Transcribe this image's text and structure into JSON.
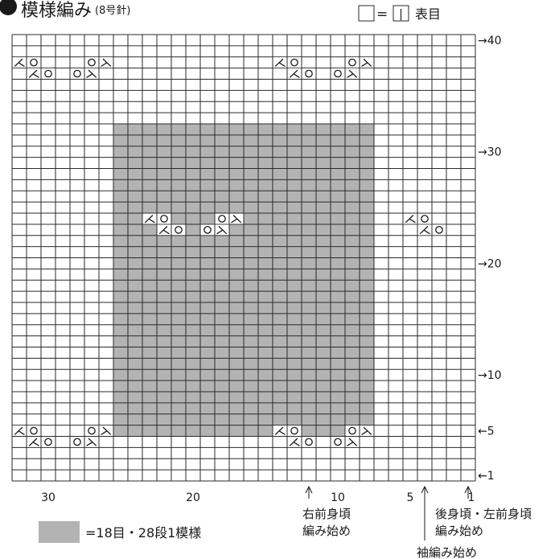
{
  "title": "模様編み",
  "needle": "(8号針)",
  "legend_top": {
    "equals": "=",
    "symbol": "|",
    "label": "表目"
  },
  "legend_bottom": {
    "label": "=18目・28段1模様"
  },
  "grid": {
    "cols": 32,
    "rows": 40,
    "shade_cols": [
      8,
      25
    ],
    "shade_rows": [
      5,
      32
    ]
  },
  "row_labels": [
    {
      "row": 40,
      "text": "→40"
    },
    {
      "row": 30,
      "text": "→30"
    },
    {
      "row": 20,
      "text": "→20"
    },
    {
      "row": 10,
      "text": "→10"
    },
    {
      "row": 5,
      "text": "←5"
    },
    {
      "row": 1,
      "text": "←1"
    }
  ],
  "col_labels": [
    {
      "col": 30,
      "text": "30"
    },
    {
      "col": 20,
      "text": "20"
    },
    {
      "col": 10,
      "text": "10"
    },
    {
      "col": 5,
      "text": "5"
    },
    {
      "col": 1,
      "text": "1"
    }
  ],
  "start_markers": [
    {
      "col": 12,
      "lines": [
        "右前身頃",
        "編み始め"
      ]
    },
    {
      "col": 1,
      "lines": [
        "後身頃・左前身頃",
        "編み始め"
      ]
    },
    {
      "col": 4,
      "lines": [
        "袖編み始め"
      ]
    }
  ],
  "symbols": [
    {
      "row": 38,
      "col": 32,
      "s": "k2tog"
    },
    {
      "row": 38,
      "col": 31,
      "s": "yo"
    },
    {
      "row": 38,
      "col": 27,
      "s": "yo"
    },
    {
      "row": 38,
      "col": 26,
      "s": "ssk"
    },
    {
      "row": 38,
      "col": 14,
      "s": "k2tog"
    },
    {
      "row": 38,
      "col": 13,
      "s": "yo"
    },
    {
      "row": 38,
      "col": 9,
      "s": "yo"
    },
    {
      "row": 38,
      "col": 8,
      "s": "ssk"
    },
    {
      "row": 37,
      "col": 31,
      "s": "k2tog"
    },
    {
      "row": 37,
      "col": 30,
      "s": "yo"
    },
    {
      "row": 37,
      "col": 28,
      "s": "yo"
    },
    {
      "row": 37,
      "col": 27,
      "s": "ssk"
    },
    {
      "row": 37,
      "col": 13,
      "s": "k2tog"
    },
    {
      "row": 37,
      "col": 12,
      "s": "yo"
    },
    {
      "row": 37,
      "col": 10,
      "s": "yo"
    },
    {
      "row": 37,
      "col": 9,
      "s": "ssk"
    },
    {
      "row": 24,
      "col": 23,
      "s": "k2tog"
    },
    {
      "row": 24,
      "col": 22,
      "s": "yo"
    },
    {
      "row": 24,
      "col": 18,
      "s": "yo"
    },
    {
      "row": 24,
      "col": 17,
      "s": "ssk"
    },
    {
      "row": 24,
      "col": 5,
      "s": "k2tog"
    },
    {
      "row": 24,
      "col": 4,
      "s": "yo"
    },
    {
      "row": 23,
      "col": 22,
      "s": "k2tog"
    },
    {
      "row": 23,
      "col": 21,
      "s": "yo"
    },
    {
      "row": 23,
      "col": 19,
      "s": "yo"
    },
    {
      "row": 23,
      "col": 18,
      "s": "ssk"
    },
    {
      "row": 23,
      "col": 4,
      "s": "k2tog"
    },
    {
      "row": 23,
      "col": 3,
      "s": "yo"
    },
    {
      "row": 5,
      "col": 32,
      "s": "k2tog"
    },
    {
      "row": 5,
      "col": 31,
      "s": "yo"
    },
    {
      "row": 5,
      "col": 27,
      "s": "yo"
    },
    {
      "row": 5,
      "col": 26,
      "s": "ssk"
    },
    {
      "row": 5,
      "col": 14,
      "s": "k2tog"
    },
    {
      "row": 5,
      "col": 13,
      "s": "yo"
    },
    {
      "row": 5,
      "col": 9,
      "s": "yo"
    },
    {
      "row": 5,
      "col": 8,
      "s": "ssk"
    },
    {
      "row": 4,
      "col": 31,
      "s": "k2tog"
    },
    {
      "row": 4,
      "col": 30,
      "s": "yo"
    },
    {
      "row": 4,
      "col": 28,
      "s": "yo"
    },
    {
      "row": 4,
      "col": 27,
      "s": "ssk"
    },
    {
      "row": 4,
      "col": 13,
      "s": "k2tog"
    },
    {
      "row": 4,
      "col": 12,
      "s": "yo"
    },
    {
      "row": 4,
      "col": 10,
      "s": "yo"
    },
    {
      "row": 4,
      "col": 9,
      "s": "ssk"
    }
  ],
  "colors": {
    "shade": "#b3b3b3",
    "grid_line": "#2a2a2a",
    "text": "#1a1a1a"
  }
}
